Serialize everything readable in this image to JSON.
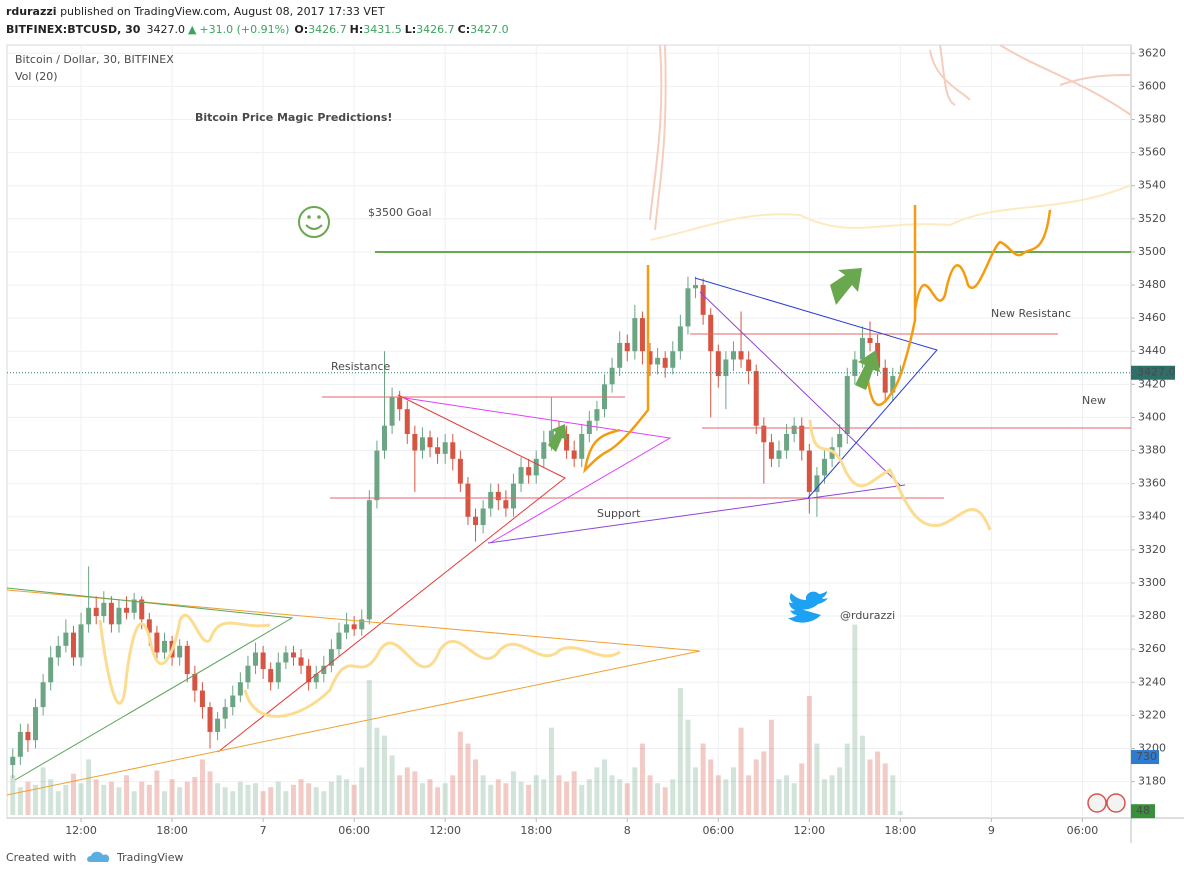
{
  "header": {
    "author": "rdurazzi",
    "published": "published on TradingView.com, August 08, 2017 17:33 VET",
    "symbol": "BITFINEX:BTCUSD, 30",
    "price": "3427.0",
    "change": "+31.0 (+0.91%)",
    "o_label": "O:",
    "o_value": "3426.7",
    "h_label": "H:",
    "h_value": "3431.5",
    "l_label": "L:",
    "l_value": "3426.7",
    "c_label": "C:",
    "c_value": "3427.0"
  },
  "footer": {
    "created": "Created with",
    "brand": "TradingView"
  },
  "chart_data": {
    "type": "candlestick",
    "title": "Bitcoin Price Magic Predictions!",
    "legend": [
      "Bitcoin / Dollar, 30, BITFINEX",
      "Vol (20)"
    ],
    "annotations": [
      "$3500 Goal",
      "Resistance",
      "Support",
      "New Resistanc",
      "New",
      "@rdurazzi"
    ],
    "up_color": "#6ba583",
    "down_color": "#d75442",
    "xlim": [
      7.12,
      81.2
    ],
    "xticks": [
      {
        "value": 12,
        "label": "12:00"
      },
      {
        "value": 18,
        "label": "18:00"
      },
      {
        "value": 24,
        "label": "7"
      },
      {
        "value": 30,
        "label": "06:00"
      },
      {
        "value": 36,
        "label": "12:00"
      },
      {
        "value": 42,
        "label": "18:00"
      },
      {
        "value": 48,
        "label": "8"
      },
      {
        "value": 54,
        "label": "06:00"
      },
      {
        "value": 60,
        "label": "12:00"
      },
      {
        "value": 66,
        "label": "18:00"
      },
      {
        "value": 72,
        "label": "9"
      },
      {
        "value": 78,
        "label": "06:00"
      }
    ],
    "ylim": [
      3158,
      3625
    ],
    "yticks": [
      3180,
      3200,
      3220,
      3240,
      3260,
      3280,
      3300,
      3320,
      3340,
      3360,
      3380,
      3400,
      3420,
      3440,
      3460,
      3480,
      3500,
      3520,
      3540,
      3560,
      3580,
      3600,
      3620
    ],
    "grid": true,
    "last_price": {
      "value": 3427,
      "label": "3427.0"
    },
    "vlim": [
      0,
      9700
    ],
    "volume_ma_last": 730,
    "x": [
      7.5,
      8,
      8.5,
      9,
      9.5,
      10,
      10.5,
      11,
      11.5,
      12,
      12.5,
      13,
      13.5,
      14,
      14.5,
      15,
      15.5,
      16,
      16.5,
      17,
      17.5,
      18,
      18.5,
      19,
      19.5,
      20,
      20.5,
      21,
      21.5,
      22,
      22.5,
      23,
      23.5,
      24,
      24.5,
      25,
      25.5,
      26,
      26.5,
      27,
      27.5,
      28,
      28.5,
      29,
      29.5,
      30,
      30.5,
      31,
      31.5,
      32,
      32.5,
      33,
      33.5,
      34,
      34.5,
      35,
      35.5,
      36,
      36.5,
      37,
      37.5,
      38,
      38.5,
      39,
      39.5,
      40,
      40.5,
      41,
      41.5,
      42,
      42.5,
      43,
      43.5,
      44,
      44.5,
      45,
      45.5,
      46,
      46.5,
      47,
      47.5,
      48,
      48.5,
      49,
      49.5,
      50,
      50.5,
      51,
      51.5,
      52,
      52.5,
      53,
      53.5,
      54,
      54.5,
      55,
      55.5,
      56,
      56.5,
      57,
      57.5,
      58,
      58.5,
      59,
      59.5,
      60,
      60.5,
      61,
      61.5,
      62,
      62.5,
      63,
      63.5,
      64,
      64.5,
      65,
      65.5,
      66
    ],
    "open": [
      3190,
      3195,
      3210,
      3205,
      3225,
      3240,
      3255,
      3262,
      3270,
      3255,
      3275,
      3285,
      3280,
      3288,
      3275,
      3285,
      3282,
      3290,
      3278,
      3270,
      3258,
      3265,
      3255,
      3262,
      3245,
      3235,
      3225,
      3210,
      3218,
      3225,
      3232,
      3240,
      3250,
      3258,
      3248,
      3240,
      3252,
      3258,
      3255,
      3250,
      3240,
      3245,
      3250,
      3260,
      3270,
      3275,
      3272,
      3278,
      3350,
      3380,
      3395,
      3412,
      3405,
      3390,
      3380,
      3388,
      3382,
      3378,
      3385,
      3375,
      3360,
      3340,
      3335,
      3345,
      3355,
      3350,
      3345,
      3360,
      3370,
      3365,
      3375,
      3385,
      3392,
      3390,
      3380,
      3375,
      3390,
      3398,
      3405,
      3420,
      3430,
      3445,
      3440,
      3460,
      3440,
      3432,
      3436,
      3430,
      3440,
      3455,
      3478,
      3480,
      3462,
      3440,
      3425,
      3435,
      3440,
      3435,
      3428,
      3395,
      3385,
      3375,
      3380,
      3390,
      3395,
      3380,
      3355,
      3365,
      3375,
      3382,
      3390,
      3425,
      3435,
      3448,
      3445,
      3430,
      3415,
      3426.7
    ],
    "high": [
      3200,
      3215,
      3215,
      3230,
      3245,
      3262,
      3268,
      3278,
      3274,
      3282,
      3310,
      3292,
      3295,
      3292,
      3290,
      3292,
      3294,
      3292,
      3282,
      3274,
      3270,
      3268,
      3266,
      3265,
      3250,
      3240,
      3228,
      3222,
      3230,
      3238,
      3246,
      3256,
      3264,
      3262,
      3252,
      3258,
      3262,
      3262,
      3260,
      3254,
      3250,
      3256,
      3266,
      3276,
      3282,
      3280,
      3284,
      3356,
      3386,
      3440,
      3418,
      3416,
      3410,
      3395,
      3394,
      3392,
      3388,
      3390,
      3390,
      3380,
      3364,
      3345,
      3350,
      3360,
      3360,
      3356,
      3366,
      3376,
      3375,
      3380,
      3392,
      3412,
      3398,
      3395,
      3386,
      3396,
      3404,
      3410,
      3426,
      3436,
      3452,
      3450,
      3468,
      3464,
      3445,
      3442,
      3440,
      3446,
      3462,
      3485,
      3485,
      3484,
      3466,
      3444,
      3440,
      3446,
      3464,
      3440,
      3432,
      3400,
      3390,
      3386,
      3396,
      3400,
      3400,
      3384,
      3370,
      3380,
      3388,
      3396,
      3430,
      3440,
      3455,
      3458,
      3450,
      3435,
      3430,
      3431.5
    ],
    "low": [
      3182,
      3190,
      3198,
      3200,
      3220,
      3235,
      3250,
      3258,
      3250,
      3250,
      3270,
      3275,
      3276,
      3270,
      3270,
      3278,
      3278,
      3272,
      3262,
      3252,
      3254,
      3250,
      3250,
      3240,
      3228,
      3218,
      3200,
      3205,
      3212,
      3220,
      3228,
      3236,
      3245,
      3242,
      3235,
      3236,
      3248,
      3250,
      3245,
      3235,
      3236,
      3240,
      3246,
      3256,
      3266,
      3268,
      3268,
      3275,
      3345,
      3375,
      3390,
      3398,
      3384,
      3355,
      3375,
      3376,
      3372,
      3372,
      3368,
      3355,
      3335,
      3325,
      3330,
      3340,
      3344,
      3340,
      3340,
      3355,
      3360,
      3360,
      3370,
      3380,
      3384,
      3375,
      3370,
      3370,
      3385,
      3392,
      3400,
      3415,
      3425,
      3434,
      3435,
      3432,
      3425,
      3426,
      3424,
      3426,
      3435,
      3450,
      3472,
      3456,
      3400,
      3418,
      3405,
      3428,
      3430,
      3420,
      3390,
      3360,
      3370,
      3370,
      3375,
      3385,
      3374,
      3342,
      3340,
      3360,
      3370,
      3376,
      3384,
      3420,
      3430,
      3440,
      3425,
      3410,
      3410,
      3426.7
    ],
    "close": [
      3195,
      3210,
      3205,
      3225,
      3240,
      3255,
      3262,
      3270,
      3255,
      3275,
      3285,
      3280,
      3288,
      3275,
      3285,
      3282,
      3290,
      3278,
      3270,
      3258,
      3265,
      3255,
      3262,
      3245,
      3235,
      3225,
      3210,
      3218,
      3225,
      3232,
      3240,
      3250,
      3258,
      3248,
      3240,
      3252,
      3258,
      3255,
      3250,
      3240,
      3245,
      3250,
      3260,
      3270,
      3275,
      3272,
      3278,
      3350,
      3380,
      3395,
      3412,
      3405,
      3390,
      3380,
      3388,
      3382,
      3378,
      3385,
      3375,
      3360,
      3340,
      3335,
      3345,
      3355,
      3350,
      3345,
      3360,
      3370,
      3365,
      3375,
      3385,
      3392,
      3390,
      3380,
      3375,
      3390,
      3398,
      3405,
      3420,
      3430,
      3445,
      3440,
      3460,
      3440,
      3432,
      3436,
      3430,
      3440,
      3455,
      3478,
      3480,
      3462,
      3440,
      3425,
      3435,
      3440,
      3435,
      3428,
      3395,
      3385,
      3375,
      3380,
      3390,
      3395,
      3380,
      3355,
      3365,
      3375,
      3382,
      3390,
      3425,
      3435,
      3448,
      3445,
      3430,
      3415,
      3425,
      3427
    ],
    "volume": [
      500,
      350,
      420,
      380,
      600,
      450,
      300,
      380,
      520,
      400,
      700,
      450,
      380,
      420,
      350,
      500,
      300,
      420,
      380,
      560,
      300,
      450,
      350,
      420,
      480,
      700,
      550,
      400,
      350,
      300,
      420,
      380,
      400,
      300,
      350,
      420,
      300,
      380,
      450,
      400,
      350,
      300,
      420,
      500,
      450,
      380,
      600,
      1700,
      1100,
      1000,
      750,
      500,
      600,
      550,
      400,
      450,
      350,
      400,
      500,
      1050,
      900,
      700,
      500,
      380,
      450,
      400,
      550,
      420,
      380,
      500,
      450,
      1100,
      500,
      420,
      550,
      380,
      450,
      600,
      700,
      500,
      450,
      400,
      600,
      900,
      500,
      400,
      350,
      450,
      1600,
      1200,
      600,
      900,
      700,
      500,
      450,
      600,
      1100,
      500,
      700,
      800,
      1200,
      450,
      500,
      400,
      650,
      1500,
      900,
      450,
      500,
      600,
      900,
      2400,
      1000,
      700,
      800,
      650,
      500,
      48
    ]
  }
}
